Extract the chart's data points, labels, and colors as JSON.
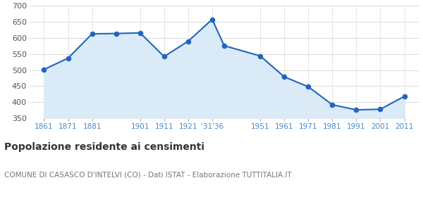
{
  "years": [
    1861,
    1871,
    1881,
    1891,
    1901,
    1911,
    1921,
    1931,
    1936,
    1951,
    1961,
    1971,
    1981,
    1991,
    2001,
    2011
  ],
  "population": [
    502,
    537,
    613,
    614,
    616,
    542,
    590,
    658,
    576,
    544,
    479,
    448,
    392,
    376,
    378,
    418
  ],
  "ylim": [
    350,
    700
  ],
  "yticks": [
    350,
    400,
    450,
    500,
    550,
    600,
    650,
    700
  ],
  "xlim_left": 1855,
  "xlim_right": 2017,
  "tick_positions": [
    1861,
    1871,
    1881,
    1901,
    1911,
    1921,
    1931,
    1951,
    1961,
    1971,
    1981,
    1991,
    2001,
    2011
  ],
  "tick_labels": [
    "1861",
    "1871",
    "1881",
    "1901",
    "1911",
    "1921",
    "'31'36",
    "1951",
    "1961",
    "1971",
    "1981",
    "1991",
    "2001",
    "2011"
  ],
  "line_color": "#2266bb",
  "fill_color": "#daeaf7",
  "marker_color": "#2266bb",
  "grid_color": "#cccccc",
  "grid_dash_color": "#cccccc",
  "bg_color": "#ffffff",
  "title": "Popolazione residente ai censimenti",
  "subtitle": "COMUNE DI CASASCO D'INTELVI (CO) - Dati ISTAT - Elaborazione TUTTITALIA.IT",
  "title_fontsize": 10,
  "subtitle_fontsize": 7.5,
  "tick_label_color": "#4488cc",
  "tick_label_fontsize": 7.5,
  "ytick_label_color": "#555555",
  "ytick_label_fontsize": 8
}
